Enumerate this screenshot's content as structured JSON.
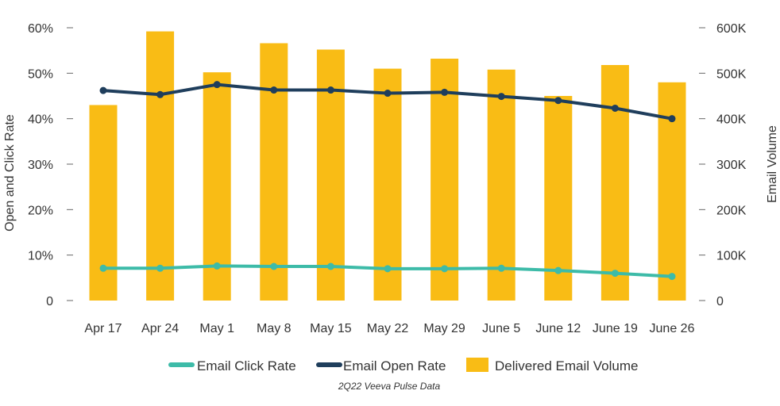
{
  "chart_data": {
    "type": "bar",
    "categories": [
      "Apr 17",
      "Apr 24",
      "May 1",
      "May 8",
      "May 15",
      "May 22",
      "May 29",
      "June 5",
      "June 12",
      "June 19",
      "June 26"
    ],
    "series": [
      {
        "name": "Delivered Email Volume",
        "kind": "bar",
        "axis": "right",
        "color": "#F9BC15",
        "values": [
          430000,
          592000,
          502000,
          566000,
          552000,
          510000,
          532000,
          508000,
          450000,
          518000,
          480000
        ]
      },
      {
        "name": "Email Open Rate",
        "kind": "line",
        "axis": "left",
        "color": "#1F3E5C",
        "values": [
          46.2,
          45.3,
          47.5,
          46.3,
          46.3,
          45.6,
          45.8,
          44.9,
          44.0,
          42.3,
          40.0
        ]
      },
      {
        "name": "Email Click Rate",
        "kind": "line",
        "axis": "left",
        "color": "#3DBBA8",
        "values": [
          7.1,
          7.1,
          7.6,
          7.5,
          7.5,
          7.0,
          7.0,
          7.1,
          6.6,
          6.0,
          5.3
        ]
      }
    ],
    "ylabel": "Open and Click Rate",
    "ylabel_right": "Email Volume",
    "ylim": [
      0,
      60
    ],
    "ylim_right": [
      0,
      600000
    ],
    "yticks": [
      "0",
      "10%",
      "20%",
      "30%",
      "40%",
      "50%",
      "60%"
    ],
    "yticks_right": [
      "0",
      "100K",
      "200K",
      "300K",
      "400K",
      "500K",
      "600K"
    ],
    "legend": [
      "Email Click Rate",
      "Email Open Rate",
      "Delivered Email Volume"
    ],
    "legend_position": "bottom",
    "source": "2Q22 Veeva Pulse Data"
  }
}
